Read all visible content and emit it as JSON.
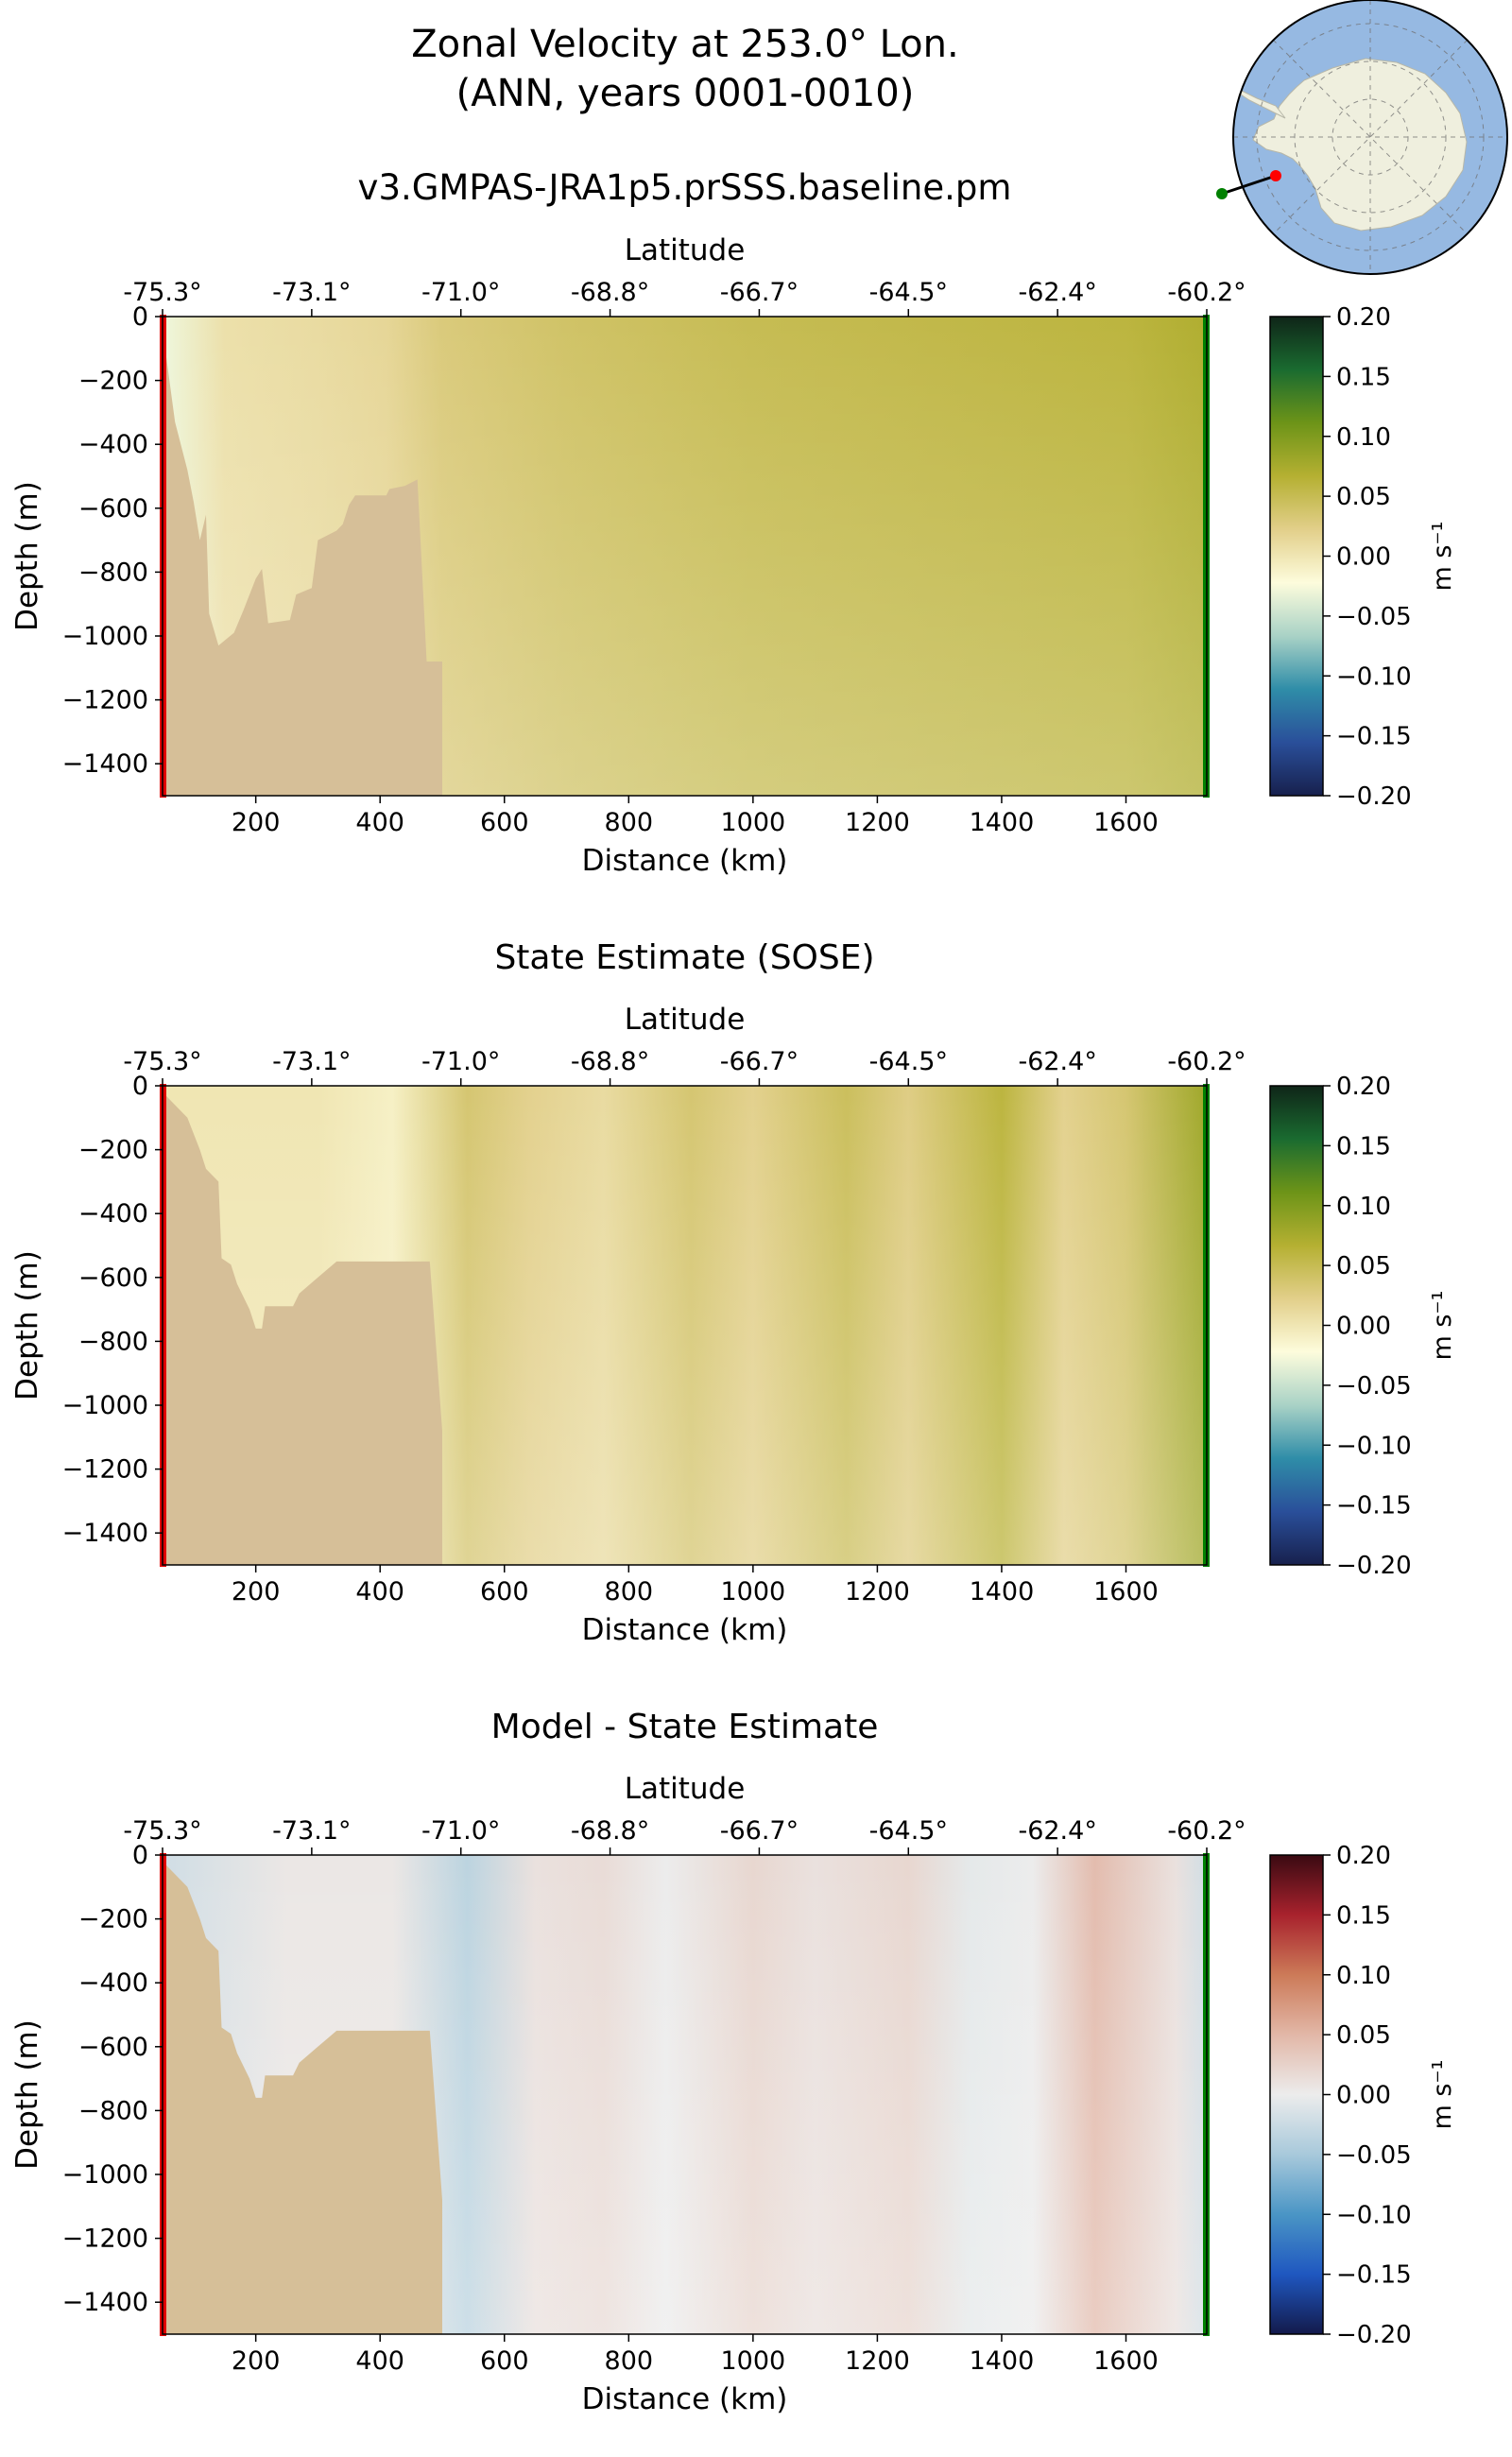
{
  "figure": {
    "title_line1": "Zonal Velocity at 253.0° Lon.",
    "title_line2": "(ANN, years 0001-0010)"
  },
  "map_inset": {
    "name": "Antarctica transect location map",
    "colors": {
      "ocean": "#96b9e2",
      "land": "#efefde",
      "section_start": "#ff0000",
      "section_end": "#008000"
    }
  },
  "colors": {
    "seafloor": "#d6bf98",
    "start_marker": "#e00000",
    "end_marker": "#008000",
    "model_colormap": [
      "#17204d",
      "#2a4f9a",
      "#2f8da8",
      "#a9d2c6",
      "#fdfcdc",
      "#e2cf8a",
      "#b5b032",
      "#6d9418",
      "#1a6b30",
      "#0f2518"
    ],
    "diff_colormap": [
      "#131a4b",
      "#1f57c0",
      "#4a95c5",
      "#a8c9db",
      "#ececec",
      "#e2b7a7",
      "#cc7a58",
      "#a8222d",
      "#3a0a12"
    ]
  },
  "chart_data": [
    {
      "type": "heatmap",
      "panel": "model",
      "title": "v3.GMPAS-JRA1p5.prSSS.baseline.pm",
      "xlabel": "Distance (km)",
      "ylabel": "Depth (m)",
      "top_axis_label": "Latitude",
      "xlim": [
        50,
        1730
      ],
      "ylim": [
        -1500,
        0
      ],
      "x_ticks": [
        200,
        400,
        600,
        800,
        1000,
        1200,
        1400,
        1600
      ],
      "y_ticks": [
        0,
        -200,
        -400,
        -600,
        -800,
        -1000,
        -1200,
        -1400
      ],
      "lat_ticks": [
        {
          "km": 50,
          "label": "-75.3°"
        },
        {
          "km": 290,
          "label": "-73.1°"
        },
        {
          "km": 530,
          "label": "-71.0°"
        },
        {
          "km": 770,
          "label": "-68.8°"
        },
        {
          "km": 1010,
          "label": "-66.7°"
        },
        {
          "km": 1250,
          "label": "-64.5°"
        },
        {
          "km": 1490,
          "label": "-62.4°"
        },
        {
          "km": 1730,
          "label": "-60.2°"
        }
      ],
      "colorbar": {
        "label": "m s⁻¹",
        "ticks": [
          "0.20",
          "0.15",
          "0.10",
          "0.05",
          "0.00",
          "−0.05",
          "−0.10",
          "−0.15",
          "−0.20"
        ]
      },
      "seafloor_profile": [
        [
          50,
          -40
        ],
        [
          70,
          -330
        ],
        [
          90,
          -480
        ],
        [
          100,
          -580
        ],
        [
          110,
          -700
        ],
        [
          120,
          -620
        ],
        [
          125,
          -930
        ],
        [
          140,
          -1030
        ],
        [
          165,
          -990
        ],
        [
          180,
          -920
        ],
        [
          200,
          -820
        ],
        [
          210,
          -790
        ],
        [
          220,
          -960
        ],
        [
          255,
          -950
        ],
        [
          265,
          -870
        ],
        [
          290,
          -850
        ],
        [
          300,
          -700
        ],
        [
          330,
          -670
        ],
        [
          340,
          -650
        ],
        [
          350,
          -590
        ],
        [
          360,
          -560
        ],
        [
          410,
          -560
        ],
        [
          415,
          -540
        ],
        [
          440,
          -530
        ],
        [
          460,
          -510
        ],
        [
          475,
          -1080
        ],
        [
          500,
          -1080
        ],
        [
          500,
          -1500
        ]
      ],
      "field_columns": [
        {
          "km": 60,
          "value": -0.03
        },
        {
          "km": 150,
          "value": 0.005
        },
        {
          "km": 300,
          "value": 0.01
        },
        {
          "km": 410,
          "value": 0.015
        },
        {
          "km": 500,
          "value": 0.03
        },
        {
          "km": 700,
          "value": 0.04
        },
        {
          "km": 1000,
          "value": 0.05
        },
        {
          "km": 1300,
          "value": 0.055
        },
        {
          "km": 1600,
          "value": 0.06
        },
        {
          "km": 1730,
          "value": 0.07
        }
      ]
    },
    {
      "type": "heatmap",
      "panel": "sose",
      "title": "State Estimate (SOSE)",
      "xlabel": "Distance (km)",
      "ylabel": "Depth (m)",
      "top_axis_label": "Latitude",
      "xlim": [
        50,
        1730
      ],
      "ylim": [
        -1500,
        0
      ],
      "x_ticks": [
        200,
        400,
        600,
        800,
        1000,
        1200,
        1400,
        1600
      ],
      "y_ticks": [
        0,
        -200,
        -400,
        -600,
        -800,
        -1000,
        -1200,
        -1400
      ],
      "lat_ticks": [
        {
          "km": 50,
          "label": "-75.3°"
        },
        {
          "km": 290,
          "label": "-73.1°"
        },
        {
          "km": 530,
          "label": "-71.0°"
        },
        {
          "km": 770,
          "label": "-68.8°"
        },
        {
          "km": 1010,
          "label": "-66.7°"
        },
        {
          "km": 1250,
          "label": "-64.5°"
        },
        {
          "km": 1490,
          "label": "-62.4°"
        },
        {
          "km": 1730,
          "label": "-60.2°"
        }
      ],
      "colorbar": {
        "label": "m s⁻¹",
        "ticks": [
          "0.20",
          "0.15",
          "0.10",
          "0.05",
          "0.00",
          "−0.05",
          "−0.10",
          "−0.15",
          "−0.20"
        ]
      },
      "seafloor_profile": [
        [
          50,
          -20
        ],
        [
          90,
          -100
        ],
        [
          110,
          -200
        ],
        [
          120,
          -260
        ],
        [
          140,
          -300
        ],
        [
          145,
          -540
        ],
        [
          160,
          -560
        ],
        [
          170,
          -620
        ],
        [
          190,
          -700
        ],
        [
          200,
          -760
        ],
        [
          210,
          -760
        ],
        [
          215,
          -690
        ],
        [
          260,
          -690
        ],
        [
          270,
          -650
        ],
        [
          300,
          -600
        ],
        [
          330,
          -550
        ],
        [
          345,
          -550
        ],
        [
          460,
          -550
        ],
        [
          480,
          -550
        ],
        [
          500,
          -1080
        ],
        [
          500,
          -1500
        ]
      ],
      "field_columns": [
        {
          "km": 60,
          "value": 0.0
        },
        {
          "km": 300,
          "value": 0.0
        },
        {
          "km": 420,
          "value": -0.01
        },
        {
          "km": 540,
          "value": 0.035
        },
        {
          "km": 640,
          "value": 0.02
        },
        {
          "km": 760,
          "value": 0.01
        },
        {
          "km": 900,
          "value": 0.035
        },
        {
          "km": 1000,
          "value": 0.02
        },
        {
          "km": 1150,
          "value": 0.045
        },
        {
          "km": 1250,
          "value": 0.025
        },
        {
          "km": 1400,
          "value": 0.06
        },
        {
          "km": 1500,
          "value": 0.02
        },
        {
          "km": 1600,
          "value": 0.035
        },
        {
          "km": 1730,
          "value": 0.08
        }
      ]
    },
    {
      "type": "heatmap",
      "panel": "difference",
      "title": "Model - State Estimate",
      "xlabel": "Distance (km)",
      "ylabel": "Depth (m)",
      "top_axis_label": "Latitude",
      "xlim": [
        50,
        1730
      ],
      "ylim": [
        -1500,
        0
      ],
      "x_ticks": [
        200,
        400,
        600,
        800,
        1000,
        1200,
        1400,
        1600
      ],
      "y_ticks": [
        0,
        -200,
        -400,
        -600,
        -800,
        -1000,
        -1200,
        -1400
      ],
      "lat_ticks": [
        {
          "km": 50,
          "label": "-75.3°"
        },
        {
          "km": 290,
          "label": "-73.1°"
        },
        {
          "km": 530,
          "label": "-71.0°"
        },
        {
          "km": 770,
          "label": "-68.8°"
        },
        {
          "km": 1010,
          "label": "-66.7°"
        },
        {
          "km": 1250,
          "label": "-64.5°"
        },
        {
          "km": 1490,
          "label": "-62.4°"
        },
        {
          "km": 1730,
          "label": "-60.2°"
        }
      ],
      "colorbar": {
        "label": "m s⁻¹",
        "ticks": [
          "0.20",
          "0.15",
          "0.10",
          "0.05",
          "0.00",
          "−0.05",
          "−0.10",
          "−0.15",
          "−0.20"
        ]
      },
      "seafloor_profile": [
        [
          50,
          -20
        ],
        [
          90,
          -100
        ],
        [
          110,
          -200
        ],
        [
          120,
          -260
        ],
        [
          140,
          -300
        ],
        [
          145,
          -540
        ],
        [
          160,
          -560
        ],
        [
          170,
          -620
        ],
        [
          190,
          -700
        ],
        [
          200,
          -760
        ],
        [
          210,
          -760
        ],
        [
          215,
          -690
        ],
        [
          260,
          -690
        ],
        [
          270,
          -650
        ],
        [
          300,
          -600
        ],
        [
          330,
          -550
        ],
        [
          345,
          -550
        ],
        [
          460,
          -550
        ],
        [
          480,
          -550
        ],
        [
          500,
          -1080
        ],
        [
          500,
          -1500
        ]
      ],
      "field_columns": [
        {
          "km": 60,
          "value": -0.02
        },
        {
          "km": 250,
          "value": 0.005
        },
        {
          "km": 420,
          "value": 0.005
        },
        {
          "km": 540,
          "value": -0.035
        },
        {
          "km": 650,
          "value": 0.01
        },
        {
          "km": 760,
          "value": 0.015
        },
        {
          "km": 860,
          "value": 0.0
        },
        {
          "km": 1000,
          "value": 0.02
        },
        {
          "km": 1100,
          "value": 0.01
        },
        {
          "km": 1250,
          "value": 0.02
        },
        {
          "km": 1350,
          "value": -0.005
        },
        {
          "km": 1450,
          "value": 0.0
        },
        {
          "km": 1550,
          "value": 0.045
        },
        {
          "km": 1680,
          "value": 0.01
        },
        {
          "km": 1730,
          "value": -0.02
        }
      ]
    }
  ]
}
